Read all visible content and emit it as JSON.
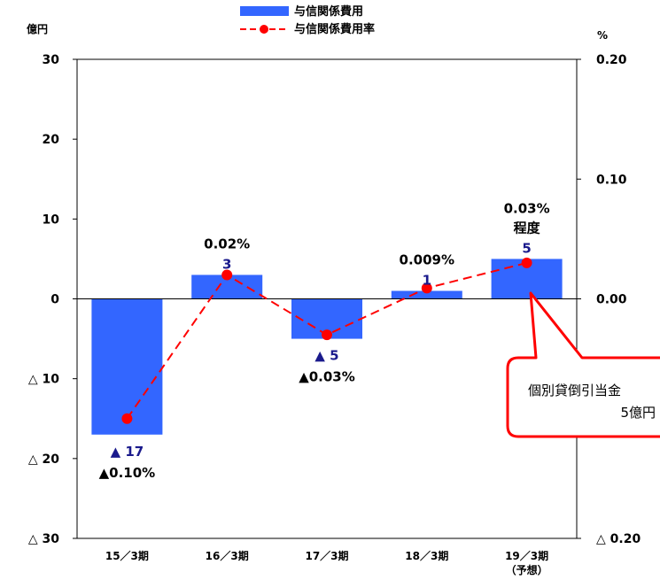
{
  "chart_data": {
    "type": "bar",
    "categories": [
      "15／3期",
      "16／3期",
      "17／3期",
      "18／3期",
      "19／3期"
    ],
    "category_sublabels": [
      "",
      "",
      "",
      "",
      "（予想）"
    ],
    "series": [
      {
        "name": "与信関係費用",
        "type": "bar",
        "axis": "left",
        "values": [
          -17,
          3,
          -5,
          1,
          5
        ],
        "color": "#3366ff"
      },
      {
        "name": "与信関係費用率",
        "type": "line",
        "axis": "right",
        "values": [
          -0.1,
          0.02,
          -0.03,
          0.009,
          0.03
        ],
        "color": "#ff0000",
        "line_style": "dashed"
      }
    ],
    "y_left": {
      "unit": "億円",
      "ylim": [
        -30,
        30
      ],
      "ticks": [
        30,
        20,
        10,
        0,
        -10,
        -20,
        -30
      ],
      "tick_labels": [
        "30",
        "20",
        "10",
        "0",
        "△ 10",
        "△ 20",
        "△ 30"
      ]
    },
    "y_right": {
      "unit": "%",
      "ylim": [
        -0.2,
        0.2
      ],
      "ticks": [
        0.2,
        0.1,
        0,
        -0.2
      ],
      "tick_labels": [
        "0.20",
        "0.10",
        "0.00",
        "△ 0.20"
      ]
    },
    "bar_value_labels": [
      "▲ 17",
      "3",
      "▲ 5",
      "1",
      "5"
    ],
    "rate_labels": [
      "▲0.10%",
      "0.02%",
      "▲0.03%",
      "0.009%",
      "0.03%"
    ],
    "rate_extra_label": "程度",
    "legend": {
      "position": "top-center",
      "entries": [
        "与信関係費用",
        "与信関係費用率"
      ]
    },
    "annotation": {
      "line1": "個別貸倒引当金",
      "line2": "5億円",
      "points_to": "19／3期"
    },
    "grid": false,
    "label_color": "#1a1a8c"
  }
}
